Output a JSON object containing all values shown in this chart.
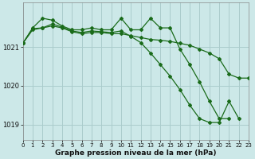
{
  "title": "Graphe pression niveau de la mer (hPa)",
  "background_color": "#cce8e8",
  "grid_color": "#aacccc",
  "line_color": "#1a6b1a",
  "xlim": [
    0,
    23
  ],
  "ylim": [
    1018.6,
    1022.15
  ],
  "yticks": [
    1019,
    1020,
    1021
  ],
  "xticks": [
    0,
    1,
    2,
    3,
    4,
    5,
    6,
    7,
    8,
    9,
    10,
    11,
    12,
    13,
    14,
    15,
    16,
    17,
    18,
    19,
    20,
    21,
    22,
    23
  ],
  "s1_x": [
    0,
    1,
    2,
    3,
    4,
    5,
    6,
    7,
    8,
    9,
    10,
    11,
    12,
    13,
    14,
    15,
    16,
    17,
    18,
    19,
    20,
    21
  ],
  "s1_y": [
    1021.1,
    1021.5,
    1021.75,
    1021.7,
    1021.55,
    1021.45,
    1021.45,
    1021.5,
    1021.45,
    1021.45,
    1021.75,
    1021.45,
    1021.45,
    1021.75,
    1021.5,
    1021.5,
    1020.95,
    1020.55,
    1020.1,
    1019.6,
    1019.15,
    1019.15
  ],
  "s2_x": [
    0,
    1,
    2,
    3,
    4,
    5,
    6,
    7,
    8,
    9,
    10,
    11,
    12,
    13,
    14,
    15,
    16,
    17,
    18,
    19,
    20,
    21,
    22,
    23
  ],
  "s2_y": [
    1021.1,
    1021.45,
    1021.5,
    1021.55,
    1021.5,
    1021.4,
    1021.35,
    1021.38,
    1021.38,
    1021.35,
    1021.35,
    1021.3,
    1021.25,
    1021.2,
    1021.18,
    1021.15,
    1021.1,
    1021.05,
    1020.95,
    1020.85,
    1020.7,
    1020.3,
    1020.2,
    1020.2
  ],
  "s3_x": [
    0,
    1,
    2,
    3,
    4,
    5,
    6,
    7,
    8,
    9,
    10,
    11,
    12,
    13,
    14,
    15,
    16,
    17,
    18,
    19,
    20,
    21,
    22
  ],
  "s3_y": [
    1021.1,
    1021.48,
    1021.5,
    1021.6,
    1021.52,
    1021.42,
    1021.38,
    1021.42,
    1021.4,
    1021.38,
    1021.42,
    1021.28,
    1021.12,
    1020.85,
    1020.55,
    1020.25,
    1019.9,
    1019.5,
    1019.15,
    1019.05,
    1019.05,
    1019.6,
    1019.15
  ]
}
